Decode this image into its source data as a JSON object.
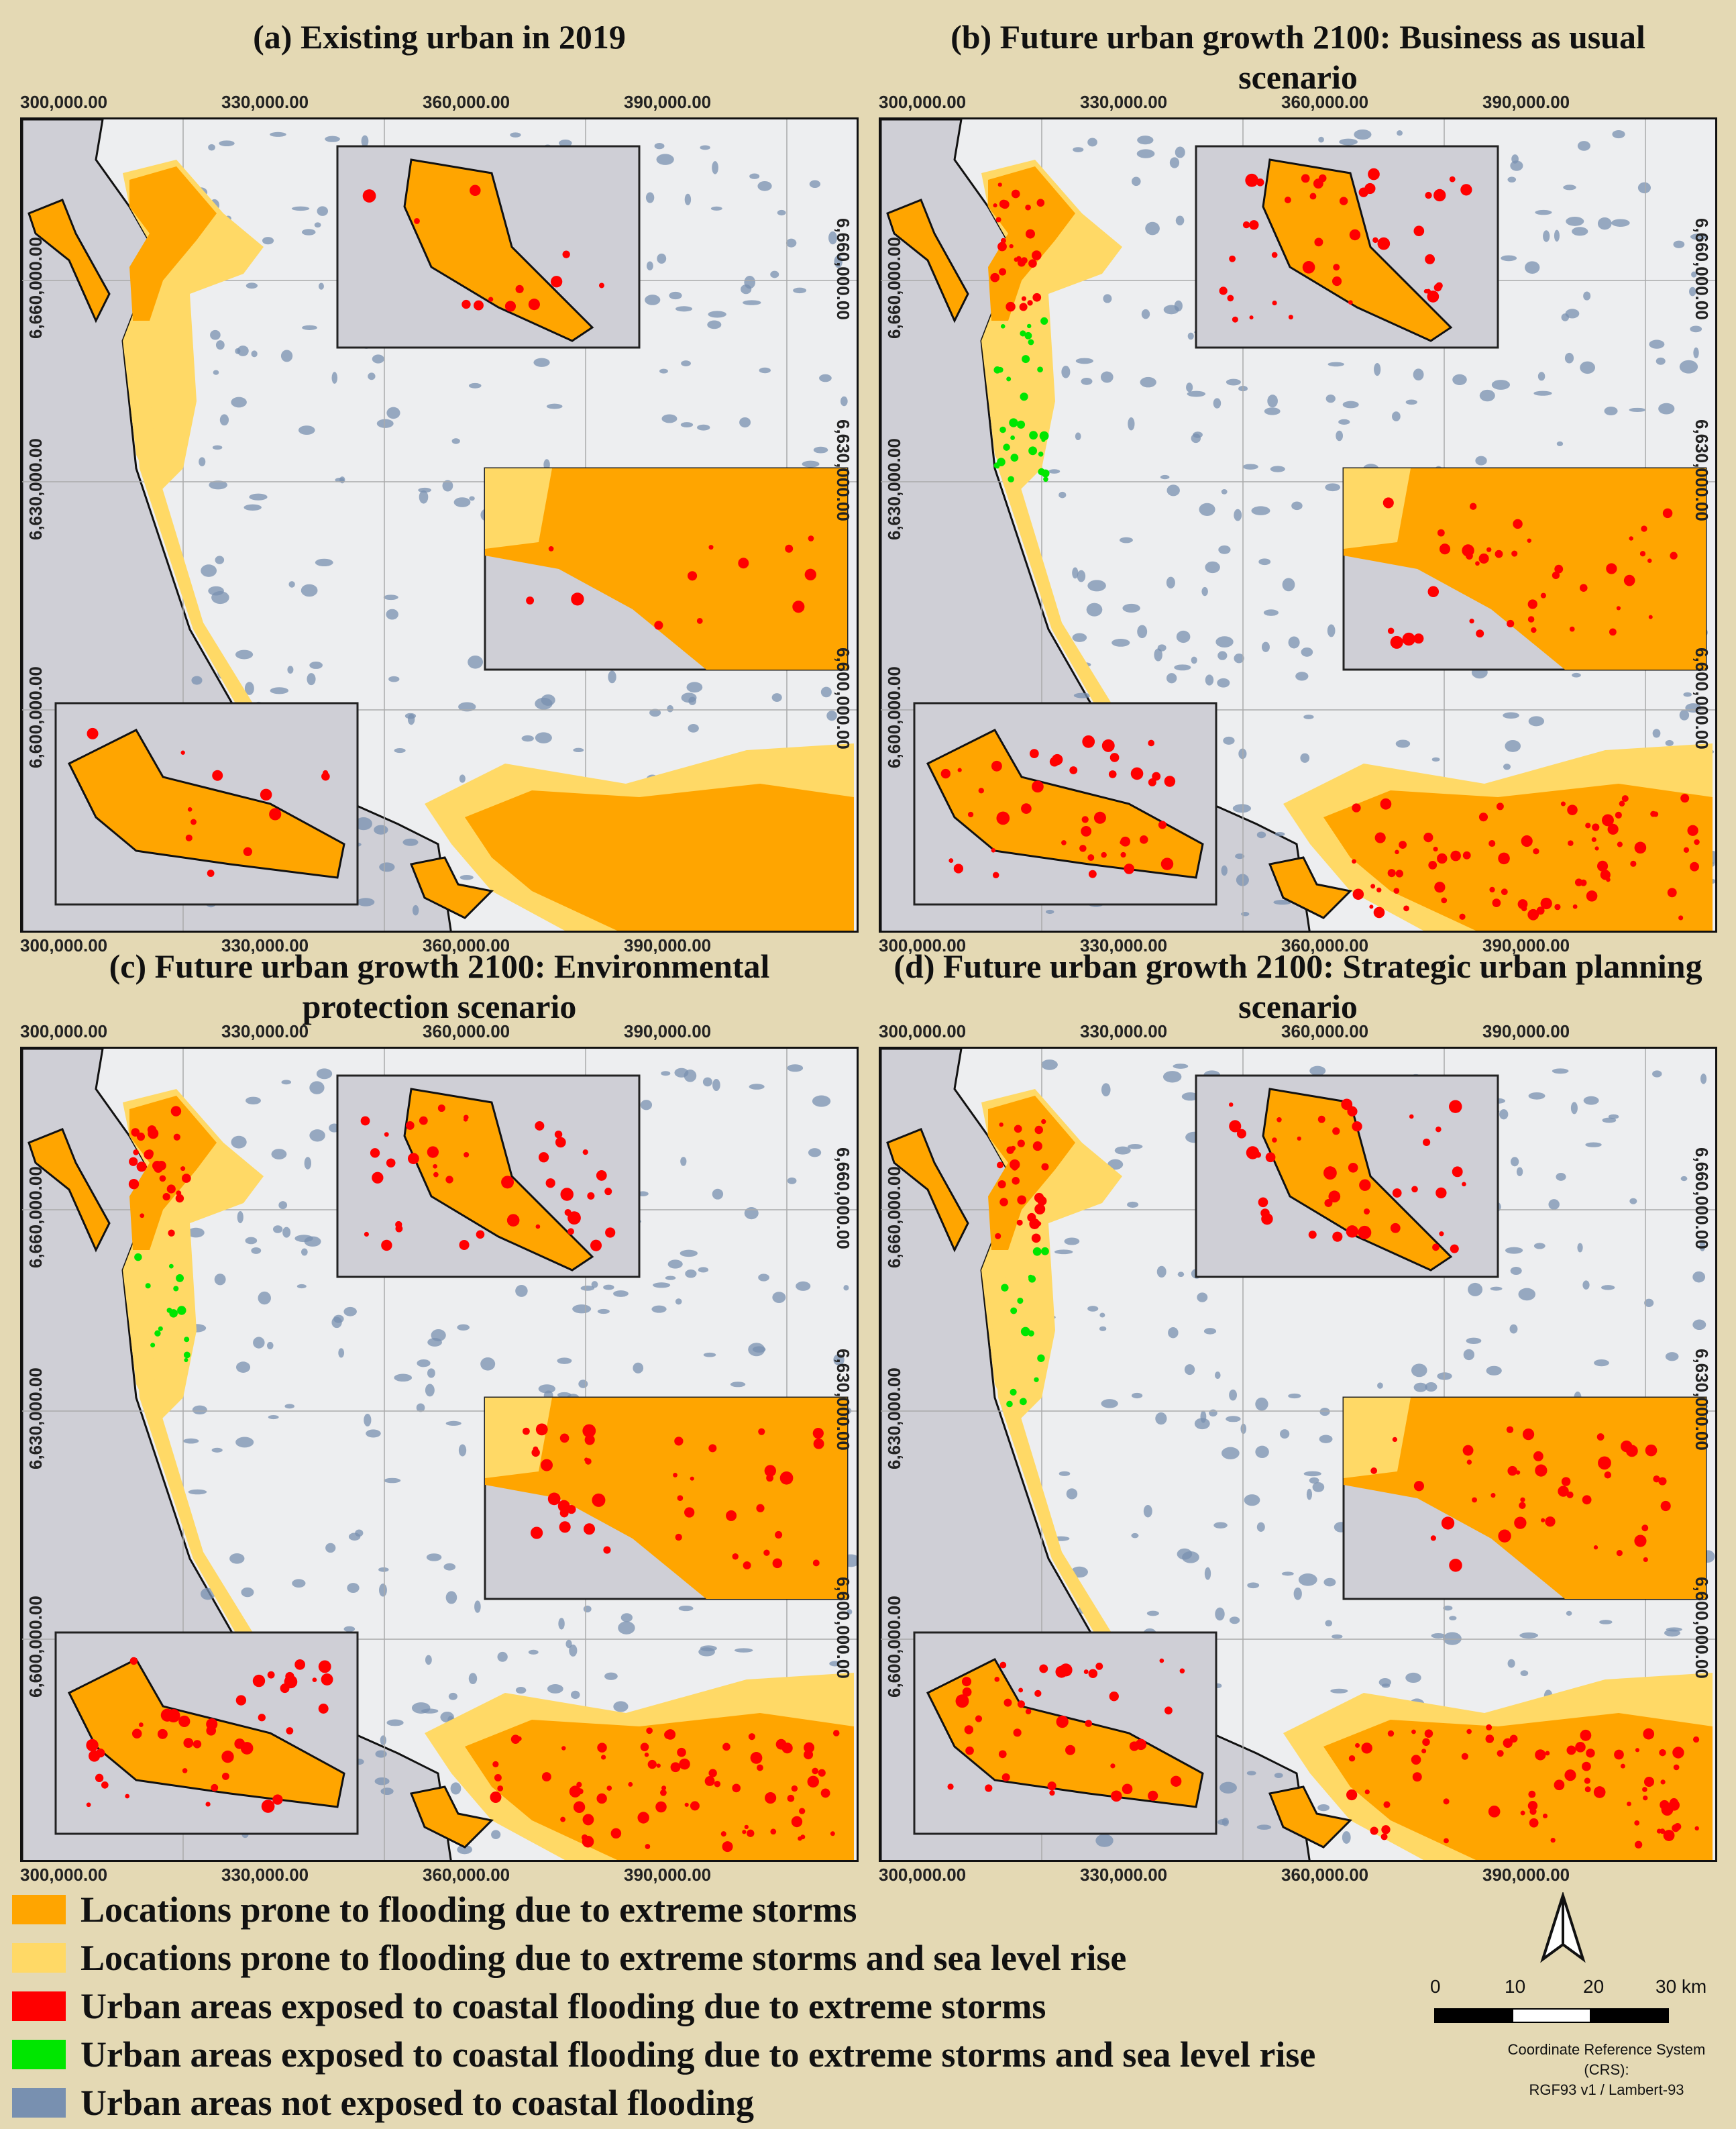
{
  "panels": [
    {
      "title": "(a) Existing urban in 2019",
      "scenario": "existing"
    },
    {
      "title": "(b) Future urban growth 2100: Business as usual scenario",
      "scenario": "bau"
    },
    {
      "title": "(c) Future urban growth 2100: Environmental protection scenario",
      "scenario": "env"
    },
    {
      "title": "(d) Future urban growth 2100:  Strategic urban planning scenario",
      "scenario": "strategic"
    }
  ],
  "x_ticks": [
    "300,000.00",
    "330,000.00",
    "360,000.00",
    "390,000.00"
  ],
  "y_ticks": [
    "6,660,000.00",
    "6,630,000.00",
    "6,600,000.00"
  ],
  "legend": [
    {
      "label": "Locations prone to flooding due to extreme storms",
      "color": "#ffa500"
    },
    {
      "label": "Locations prone to flooding due to extreme storms and sea level rise",
      "color": "#ffd966"
    },
    {
      "label": "Urban areas exposed to coastal flooding due to extreme storms",
      "color": "#ff0000"
    },
    {
      "label": "Urban areas exposed to coastal flooding due to extreme storms and sea level rise",
      "color": "#00e600"
    },
    {
      "label": "Urban areas not exposed to coastal flooding",
      "color": "#7890b0"
    }
  ],
  "scale_bar": {
    "labels": [
      "0",
      "10",
      "20",
      "30 km"
    ]
  },
  "crs": {
    "line1": "Coordinate Reference System (CRS):",
    "line2": "RGF93 v1 / Lambert-93"
  },
  "colors": {
    "sea": "#cfcfd6",
    "land": "#edeef0",
    "background": "#e4d9b4"
  }
}
